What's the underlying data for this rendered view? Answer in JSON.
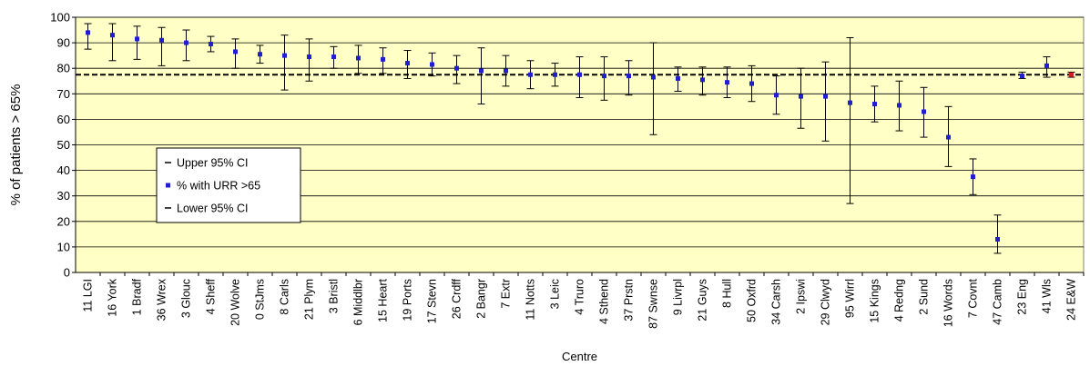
{
  "chart_data": {
    "type": "scatter",
    "title": "",
    "xlabel": "Centre",
    "ylabel": "% of patients > 65%",
    "ylim": [
      0,
      100
    ],
    "yticks": [
      0,
      10,
      20,
      30,
      40,
      50,
      60,
      70,
      80,
      90,
      100
    ],
    "grid": "horizontal",
    "reference_line": 77.5,
    "legend_position": "middle-left",
    "legend": [
      "Upper 95% CI",
      "% with URR >65",
      "Lower 95% CI"
    ],
    "colors": {
      "point": "#1f1fd0",
      "highlight": "#cc2222",
      "plot_bg": "#ffffc6",
      "grid": "#000000"
    },
    "categories": [
      "11 LGI",
      "16 York",
      "1 Bradf",
      "36 Wrex",
      "3 Glouc",
      "4 Sheff",
      "20 Wolve",
      "0 StJms",
      "8 Carls",
      "21 Plym",
      "3 Bristl",
      "6 Middlbr",
      "15 Heart",
      "19 Ports",
      "17 Stevn",
      "26 Crdff",
      "2 Bangr",
      "7 Extr",
      "11 Notts",
      "3 Leic",
      "4 Truro",
      "4 Sthend",
      "37 Prstn",
      "87 Swnse",
      "9 Livrpl",
      "21 Guys",
      "8 Hull",
      "50 Oxfrd",
      "34 Carsh",
      "2 Ipswi",
      "29 Clwyd",
      "95 Wirrl",
      "15 Kings",
      "4 Redng",
      "2 Sund",
      "16 Words",
      "7 Covnt",
      "47 Camb",
      "23 Eng",
      "41 Wls",
      "24 E&W"
    ],
    "series": [
      {
        "name": "% with URR >65",
        "values": [
          94,
          93,
          91.5,
          91,
          90,
          89.5,
          86.5,
          85.5,
          85,
          84.5,
          84.5,
          84,
          83.5,
          82,
          81.5,
          80,
          79,
          79,
          77.5,
          77.5,
          77.5,
          77,
          77,
          76.5,
          76,
          75.5,
          74.5,
          74,
          69.5,
          69,
          69,
          66.5,
          66,
          65.5,
          63,
          53,
          37.5,
          13,
          77,
          81,
          77.5
        ]
      },
      {
        "name": "Upper 95% CI",
        "values": [
          97.5,
          97.5,
          96.5,
          96,
          95,
          92.5,
          91.5,
          89,
          93,
          91.5,
          88.5,
          89,
          88,
          87,
          86,
          85,
          88,
          85,
          83,
          82,
          84.5,
          84.5,
          83,
          90,
          80.5,
          80.5,
          80.5,
          81,
          77,
          80,
          82.5,
          92,
          73,
          75,
          72.5,
          65,
          44.5,
          22.5,
          78.5,
          84.5,
          78.5
        ]
      },
      {
        "name": "Lower 95% CI",
        "values": [
          87.5,
          83,
          83.5,
          81,
          83,
          86.5,
          80,
          82,
          71.5,
          75,
          80,
          78,
          78,
          76,
          77,
          74,
          66,
          73,
          72,
          73,
          68.5,
          67.5,
          69.5,
          54,
          71,
          69.5,
          68.5,
          67,
          62,
          56.5,
          51.5,
          27,
          59,
          55.5,
          53,
          41.5,
          30.5,
          7.5,
          76,
          76.5,
          76.5
        ]
      }
    ]
  }
}
